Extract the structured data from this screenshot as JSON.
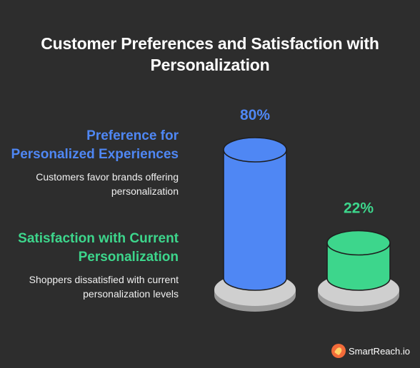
{
  "chart_data": {
    "type": "bar",
    "title": "Customer Preferences and Satisfaction with Personalization",
    "categories": [
      "Preference for Personalized Experiences",
      "Satisfaction with Current Personalization"
    ],
    "values": [
      80,
      22
    ],
    "value_labels": [
      "80%",
      "22%"
    ],
    "descriptions": [
      "Customers favor brands offering personalization",
      "Shoppers dissatisfied with current personalization levels"
    ],
    "colors": [
      "#4f87f4",
      "#3dd68c"
    ],
    "ylim": [
      0,
      100
    ]
  },
  "branding": {
    "name": "SmartReach.io",
    "icon": "rocket-icon"
  }
}
